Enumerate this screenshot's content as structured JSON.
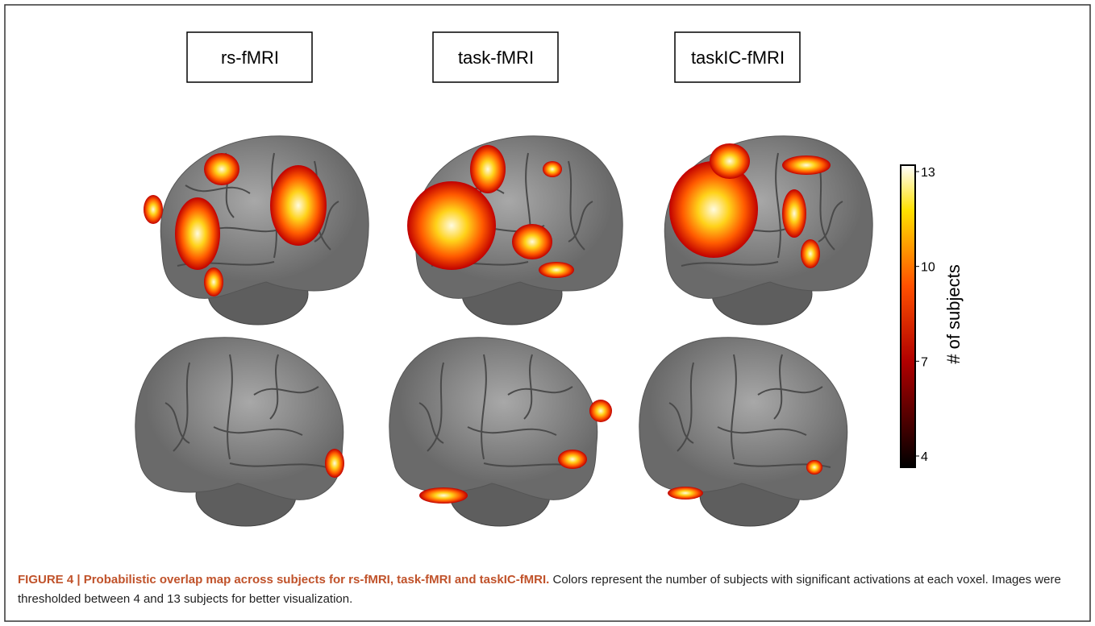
{
  "figure": {
    "panel_labels": [
      "rs-fMRI",
      "task-fMRI",
      "taskIC-fMRI"
    ],
    "colorbar": {
      "label": "# of subjects",
      "lim": [
        4,
        13
      ],
      "ticks": [
        4,
        7,
        10,
        13
      ]
    },
    "caption": {
      "bold": "FIGURE 4 | Probabilistic overlap map across subjects for rs-fMRI, task-fMRI and taskIC-fMRI.",
      "text": "Colors represent the number of subjects with significant activations at each voxel. Images were thresholded between 4 and 13 subjects for better visualization."
    }
  }
}
